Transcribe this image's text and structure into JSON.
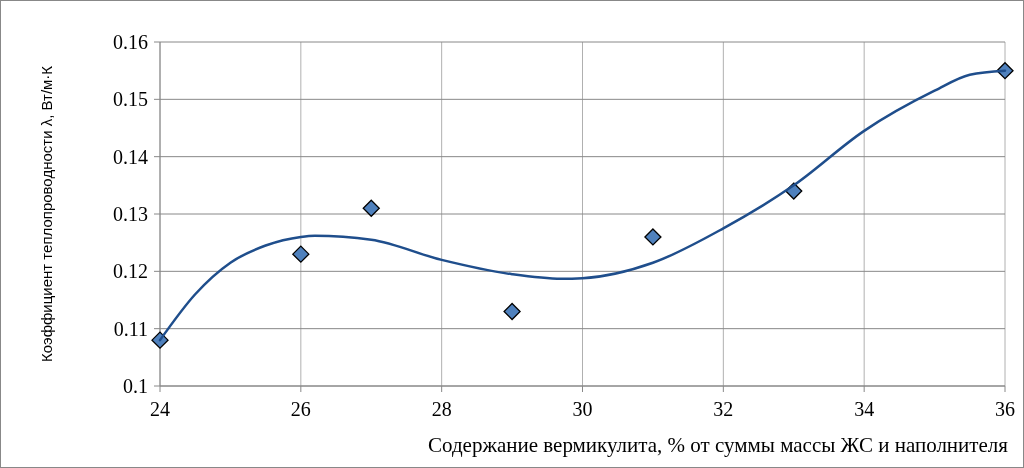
{
  "chart_data": {
    "type": "scatter",
    "xlabel": "Содержание  вермикулита,  % от суммы массы ЖС и наполнителя",
    "ylabel": "Коэффициент теплопроводности λ, Вт/м·К",
    "xlim": [
      24,
      36
    ],
    "xticks": [
      24,
      26,
      28,
      30,
      32,
      34,
      36
    ],
    "ylim": [
      0.1,
      0.16
    ],
    "yticks": [
      0.1,
      0.11,
      0.12,
      0.13,
      0.14,
      0.15,
      0.16
    ],
    "grid": true,
    "marker": "diamond",
    "series": [
      {
        "color": "#4f81bd",
        "x": [
          24,
          26,
          27,
          29,
          31,
          33,
          36
        ],
        "values": [
          0.108,
          0.123,
          0.131,
          0.113,
          0.126,
          0.134,
          0.155
        ]
      },
      {
        "type": "line",
        "color": "#1f4e8c",
        "marker": "none",
        "line_style": "solid",
        "x": [
          24,
          24.5,
          25,
          25.5,
          26,
          26.2,
          27,
          28,
          29,
          29.7,
          30,
          31,
          32,
          33,
          34,
          35,
          35.5,
          36
        ],
        "values": [
          0.108,
          0.116,
          0.1215,
          0.1245,
          0.126,
          0.1262,
          0.1255,
          0.122,
          0.1195,
          0.1187,
          0.1188,
          0.1215,
          0.1275,
          0.135,
          0.1445,
          0.1515,
          0.1543,
          0.155
        ]
      }
    ]
  }
}
